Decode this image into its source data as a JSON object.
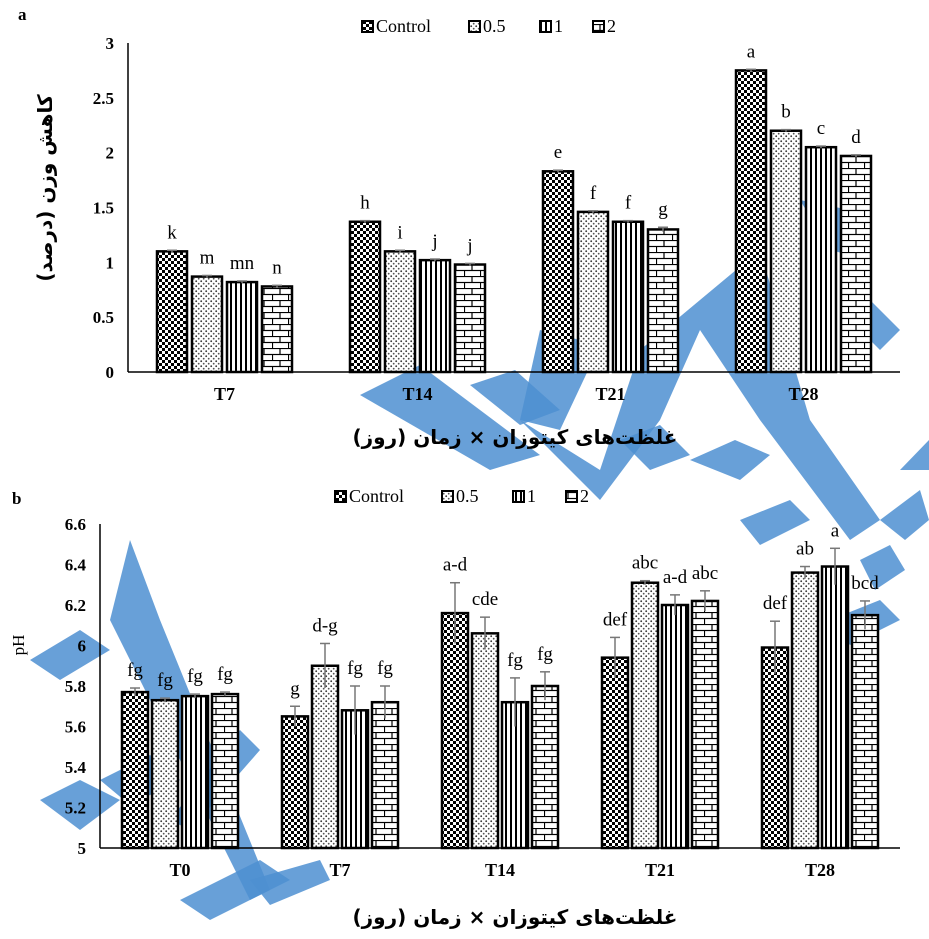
{
  "chart_data": [
    {
      "panel": "a",
      "type": "bar",
      "categories": [
        "T7",
        "T14",
        "T21",
        "T28"
      ],
      "series": [
        {
          "name": "Control",
          "values": [
            1.1,
            1.37,
            1.83,
            2.75
          ],
          "errors": [
            0.01,
            0.01,
            0.01,
            0.01
          ],
          "letters": [
            "k",
            "h",
            "e",
            "a"
          ]
        },
        {
          "name": "0.5",
          "values": [
            0.87,
            1.1,
            1.46,
            2.2
          ],
          "errors": [
            0.01,
            0.01,
            0.01,
            0.01
          ],
          "letters": [
            "m",
            "i",
            "f",
            "b"
          ]
        },
        {
          "name": "1",
          "values": [
            0.82,
            1.02,
            1.37,
            2.05
          ],
          "errors": [
            0.01,
            0.01,
            0.01,
            0.01
          ],
          "letters": [
            "mn",
            "j",
            "f",
            "c"
          ]
        },
        {
          "name": "2",
          "values": [
            0.78,
            0.98,
            1.3,
            1.97
          ],
          "errors": [
            0.01,
            0.01,
            0.02,
            0.01
          ],
          "letters": [
            "n",
            "j",
            "g",
            "d"
          ]
        }
      ],
      "ylim": [
        0,
        3
      ],
      "yticks": [
        "0",
        "0.5",
        "1",
        "1.5",
        "2",
        "2.5",
        "3"
      ],
      "xlabel": "غلظت‌های کیتوزان × زمان (روز)",
      "ylabel": "کاهش وزن (درصد)",
      "legend": "top-center"
    },
    {
      "panel": "b",
      "type": "bar",
      "categories": [
        "T0",
        "T7",
        "T14",
        "T21",
        "T28"
      ],
      "series": [
        {
          "name": "Control",
          "values": [
            5.77,
            5.65,
            6.16,
            5.94,
            5.99
          ],
          "errors": [
            0.02,
            0.05,
            0.15,
            0.1,
            0.13
          ],
          "letters": [
            "fg",
            "g",
            "a-d",
            "def",
            "def"
          ]
        },
        {
          "name": "0.5",
          "values": [
            5.73,
            5.9,
            6.06,
            6.31,
            6.36
          ],
          "errors": [
            0.01,
            0.11,
            0.08,
            0.01,
            0.03
          ],
          "letters": [
            "fg",
            "d-g",
            "cde",
            "abc",
            "ab"
          ]
        },
        {
          "name": "1",
          "values": [
            5.75,
            5.68,
            5.72,
            6.2,
            6.39
          ],
          "errors": [
            0.01,
            0.12,
            0.12,
            0.05,
            0.09
          ],
          "letters": [
            "fg",
            "fg",
            "fg",
            "a-d",
            "a"
          ]
        },
        {
          "name": "2",
          "values": [
            5.76,
            5.72,
            5.8,
            6.22,
            6.15
          ],
          "errors": [
            0.01,
            0.08,
            0.07,
            0.05,
            0.07
          ],
          "letters": [
            "fg",
            "fg",
            "fg",
            "abc",
            "bcd"
          ]
        }
      ],
      "ylim": [
        5,
        6.6
      ],
      "yticks": [
        "5",
        "5.2",
        "5.4",
        "5.6",
        "5.8",
        "6",
        "6.2",
        "6.4",
        "6.6"
      ],
      "xlabel": "غلظت‌های کیتوزان × زمان (روز)",
      "ylabel": "pH",
      "legend": "top-center"
    }
  ],
  "colors": {
    "axis": "#000000",
    "bar_outline": "#000000",
    "watermark": "#4d8fd1"
  },
  "patterns": [
    "checker",
    "dotted",
    "vertical-lines",
    "bricks"
  ]
}
